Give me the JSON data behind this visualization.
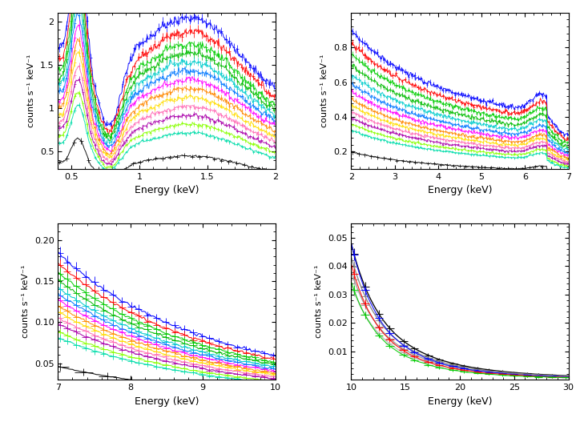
{
  "panels": [
    {
      "xlim": [
        0.4,
        2.0
      ],
      "ylim": [
        0.3,
        2.1
      ],
      "xlabel": "Energy (keV)",
      "ylabel": "counts s⁻¹ keV⁻¹",
      "yticks": [
        0.5,
        1.0,
        1.5,
        2.0
      ],
      "ytick_labels": [
        "0.5",
        "1",
        "1.5",
        "2"
      ],
      "xticks": [
        0.5,
        1.0,
        1.5,
        2.0
      ],
      "xtick_labels": [
        "0.5",
        "1",
        "1.5",
        "2"
      ]
    },
    {
      "xlim": [
        2.0,
        7.0
      ],
      "ylim": [
        0.1,
        1.0
      ],
      "xlabel": "Energy (keV)",
      "ylabel": "counts s⁻¹ keV⁻¹",
      "yticks": [
        0.2,
        0.4,
        0.6,
        0.8
      ],
      "ytick_labels": [
        "0.2",
        "0.4",
        "0.6",
        "0.8"
      ],
      "xticks": [
        2,
        3,
        4,
        5,
        6,
        7
      ],
      "xtick_labels": [
        "2",
        "3",
        "4",
        "5",
        "6",
        "7"
      ]
    },
    {
      "xlim": [
        7.0,
        10.0
      ],
      "ylim": [
        0.03,
        0.22
      ],
      "xlabel": "Energy (keV)",
      "ylabel": "counts s⁻¹ keV⁻¹",
      "yticks": [
        0.05,
        0.1,
        0.15,
        0.2
      ],
      "ytick_labels": [
        "0.05",
        "0.10",
        "0.15",
        "0.20"
      ],
      "xticks": [
        7,
        8,
        9,
        10
      ],
      "xtick_labels": [
        "7",
        "8",
        "9",
        "10"
      ]
    },
    {
      "xlim": [
        10.0,
        30.0
      ],
      "ylim": [
        0.0,
        0.055
      ],
      "xlabel": "Energy (keV)",
      "ylabel": "counts s⁻¹ keV⁻¹",
      "yticks": [
        0.01,
        0.02,
        0.03,
        0.04,
        0.05
      ],
      "ytick_labels": [
        "0.01",
        "0.02",
        "0.03",
        "0.04",
        "0.05"
      ],
      "xticks": [
        10,
        15,
        20,
        25,
        30
      ],
      "xtick_labels": [
        "10",
        "15",
        "20",
        "25",
        "30"
      ]
    }
  ],
  "colors": [
    "#0000ff",
    "#ff0000",
    "#00cc00",
    "#00bb00",
    "#00cccc",
    "#0077ff",
    "#ff00ff",
    "#ff8800",
    "#ffdd00",
    "#ff69b4",
    "#aa00aa",
    "#88ff00",
    "#00ddaa",
    "#000000"
  ],
  "nustar_colors": [
    "#000000",
    "#888888",
    "#aaaaaa",
    "#bbbbbb"
  ],
  "background_color": "#ffffff"
}
